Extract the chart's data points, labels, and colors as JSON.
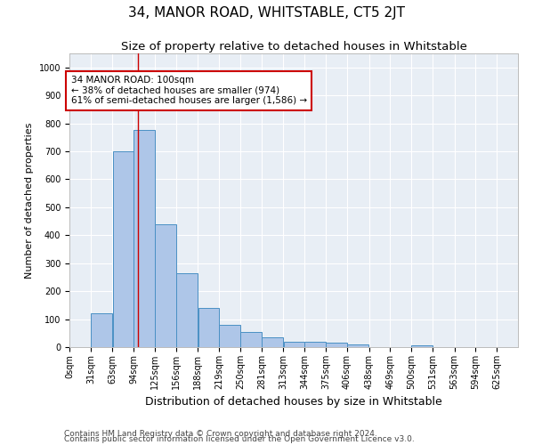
{
  "title": "34, MANOR ROAD, WHITSTABLE, CT5 2JT",
  "subtitle": "Size of property relative to detached houses in Whitstable",
  "xlabel": "Distribution of detached houses by size in Whitstable",
  "ylabel": "Number of detached properties",
  "bar_color": "#aec6e8",
  "bar_edge_color": "#4a90c4",
  "background_color": "#e8eef5",
  "annotation_line1": "34 MANOR ROAD: 100sqm",
  "annotation_line2": "← 38% of detached houses are smaller (974)",
  "annotation_line3": "61% of semi-detached houses are larger (1,586) →",
  "annotation_box_color": "#ffffff",
  "annotation_box_edge_color": "#cc0000",
  "vline_x": 100,
  "vline_color": "#cc0000",
  "categories": [
    "0sqm",
    "31sqm",
    "63sqm",
    "94sqm",
    "125sqm",
    "156sqm",
    "188sqm",
    "219sqm",
    "250sqm",
    "281sqm",
    "313sqm",
    "344sqm",
    "375sqm",
    "406sqm",
    "438sqm",
    "469sqm",
    "500sqm",
    "531sqm",
    "563sqm",
    "594sqm",
    "625sqm"
  ],
  "bin_edges": [
    0,
    31,
    63,
    94,
    125,
    156,
    188,
    219,
    250,
    281,
    313,
    344,
    375,
    406,
    438,
    469,
    500,
    531,
    563,
    594,
    625,
    656
  ],
  "values": [
    0,
    120,
    700,
    775,
    440,
    265,
    140,
    80,
    55,
    35,
    20,
    20,
    15,
    10,
    0,
    0,
    5,
    0,
    0,
    0,
    0
  ],
  "ylim": [
    0,
    1050
  ],
  "yticks": [
    0,
    100,
    200,
    300,
    400,
    500,
    600,
    700,
    800,
    900,
    1000
  ],
  "footnote1": "Contains HM Land Registry data © Crown copyright and database right 2024.",
  "footnote2": "Contains public sector information licensed under the Open Government Licence v3.0.",
  "title_fontsize": 11,
  "subtitle_fontsize": 9.5,
  "xlabel_fontsize": 9,
  "ylabel_fontsize": 8,
  "tick_fontsize": 7,
  "annotation_fontsize": 7.5,
  "footnote_fontsize": 6.5,
  "grid_color": "#ffffff",
  "fig_bg_color": "#ffffff"
}
